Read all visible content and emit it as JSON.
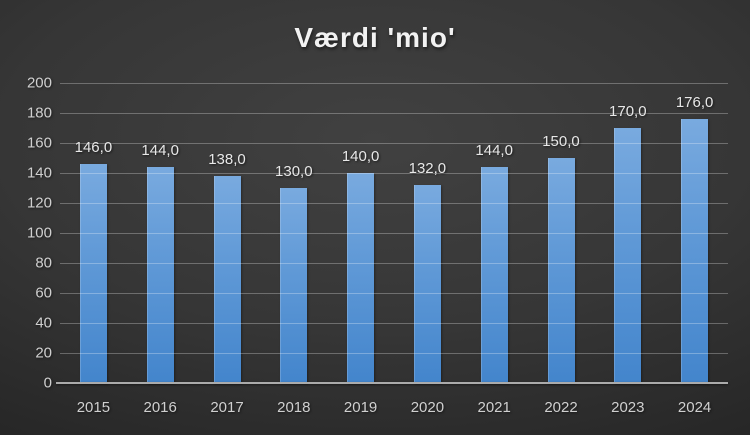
{
  "chart_data": {
    "type": "bar",
    "title": "Værdi 'mio'",
    "categories": [
      "2015",
      "2016",
      "2017",
      "2018",
      "2019",
      "2020",
      "2021",
      "2022",
      "2023",
      "2024"
    ],
    "values": [
      146,
      144,
      138,
      130,
      140,
      132,
      144,
      150,
      170,
      176
    ],
    "value_labels": [
      "146,0",
      "144,0",
      "138,0",
      "130,0",
      "140,0",
      "132,0",
      "144,0",
      "150,0",
      "170,0",
      "176,0"
    ],
    "y_ticks": [
      0,
      20,
      40,
      60,
      80,
      100,
      120,
      140,
      160,
      180,
      200
    ],
    "ylim": [
      0,
      200
    ],
    "xlabel": "",
    "ylabel": "",
    "grid": true,
    "legend": false,
    "decimal_separator": ","
  },
  "colors": {
    "background_center": "#414141",
    "background_edge": "#272727",
    "bar_top": "#79aadf",
    "bar_bottom": "#4385cc",
    "gridline": "rgba(255,255,255,0.28)",
    "axis_line": "#ababab",
    "tick_text": "#d0d0d0",
    "value_text": "#e8e8e8",
    "title_text": "#f2f2f2"
  }
}
